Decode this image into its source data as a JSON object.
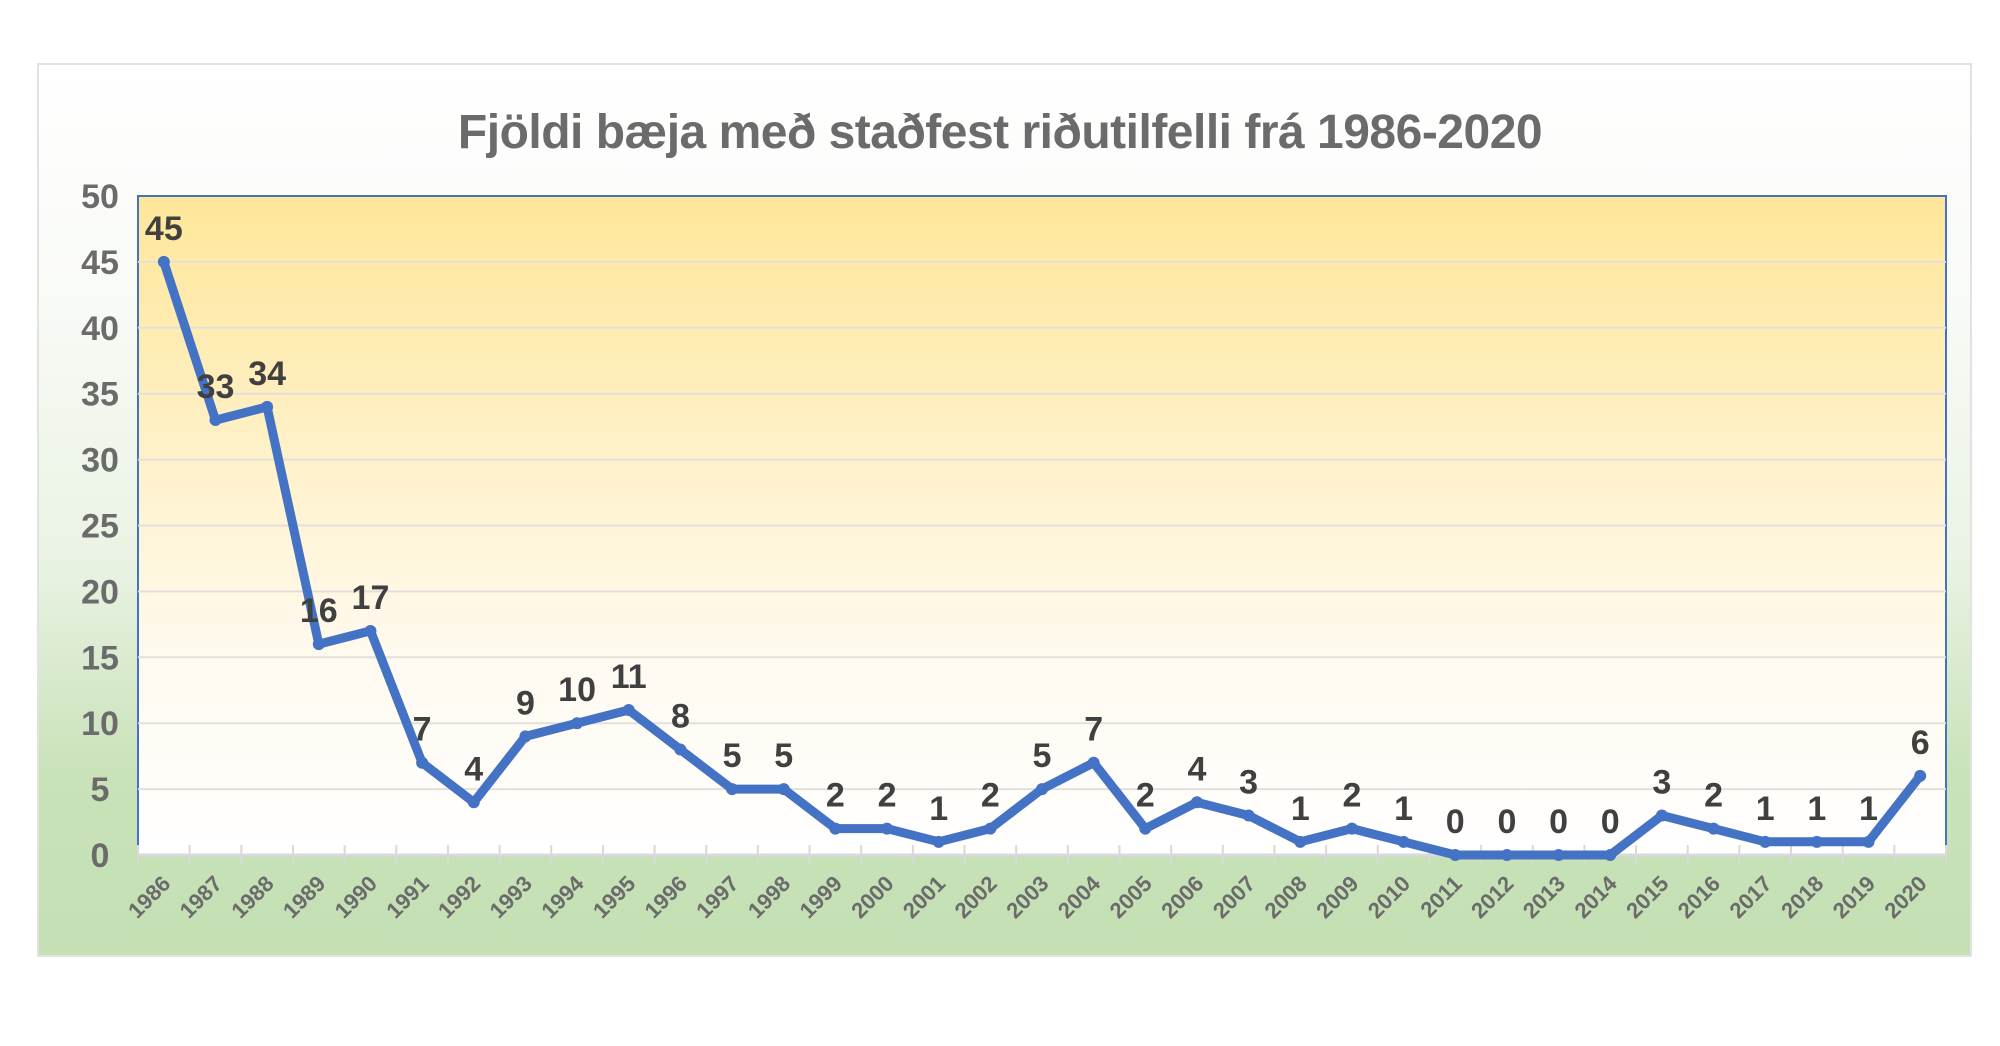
{
  "chart_data": {
    "type": "line",
    "title": "Fjöldi bæja með staðfest riðutilfelli frá 1986-2020",
    "xlabel": "",
    "ylabel": "",
    "ylim": [
      0,
      50
    ],
    "yticks": [
      0,
      5,
      10,
      15,
      20,
      25,
      30,
      35,
      40,
      45,
      50
    ],
    "grid": true,
    "legend": "none",
    "data_labels": true,
    "categories": [
      "1986",
      "1987",
      "1988",
      "1989",
      "1990",
      "1991",
      "1992",
      "1993",
      "1994",
      "1995",
      "1996",
      "1997",
      "1998",
      "1999",
      "2000",
      "2001",
      "2002",
      "2003",
      "2004",
      "2005",
      "2006",
      "2007",
      "2008",
      "2009",
      "2010",
      "2011",
      "2012",
      "2013",
      "2014",
      "2015",
      "2016",
      "2017",
      "2018",
      "2019",
      "2020"
    ],
    "series": [
      {
        "name": "Fjöldi bæja",
        "color": "#4472c4",
        "values": [
          45,
          33,
          34,
          16,
          17,
          7,
          4,
          9,
          10,
          11,
          8,
          5,
          5,
          2,
          2,
          1,
          2,
          5,
          7,
          2,
          4,
          3,
          1,
          2,
          1,
          0,
          0,
          0,
          0,
          3,
          2,
          1,
          1,
          1,
          6
        ]
      }
    ]
  },
  "colors": {
    "line": "#4472c4",
    "plot_top": "#ffe699",
    "plot_bottom": "#ffffff",
    "frame_bottom": "#c5e0b4",
    "axis_text": "#6b6b6b",
    "label_text": "#404040",
    "plot_border": "#4472c4"
  }
}
